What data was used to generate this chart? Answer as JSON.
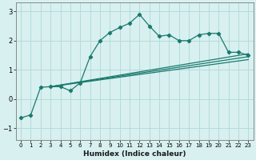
{
  "xlabel": "Humidex (Indice chaleur)",
  "bg_color": "#d8f0f0",
  "grid_color": "#b0d8d8",
  "line_color": "#1a7a6e",
  "xlim": [
    -0.5,
    23.5
  ],
  "ylim": [
    -1.4,
    3.3
  ],
  "xticks": [
    0,
    1,
    2,
    3,
    4,
    5,
    6,
    7,
    8,
    9,
    10,
    11,
    12,
    13,
    14,
    15,
    16,
    17,
    18,
    19,
    20,
    21,
    22,
    23
  ],
  "yticks": [
    -1,
    0,
    1,
    2,
    3
  ],
  "main_x": [
    0,
    1,
    2,
    3,
    4,
    5,
    6,
    7,
    8,
    9,
    10,
    11,
    12,
    13,
    14,
    15,
    16,
    17,
    18,
    19,
    20,
    21,
    22,
    23
  ],
  "main_y": [
    -0.65,
    -0.55,
    0.4,
    0.42,
    0.42,
    0.28,
    0.55,
    1.45,
    2.0,
    2.28,
    2.45,
    2.6,
    2.9,
    2.5,
    2.15,
    2.2,
    2.0,
    2.0,
    2.2,
    2.25,
    2.25,
    1.6,
    1.6,
    1.5
  ],
  "trend_lines": [
    {
      "x": [
        3,
        23
      ],
      "y": [
        0.42,
        1.55
      ]
    },
    {
      "x": [
        3,
        23
      ],
      "y": [
        0.42,
        1.45
      ]
    },
    {
      "x": [
        3,
        23
      ],
      "y": [
        0.42,
        1.35
      ]
    }
  ]
}
